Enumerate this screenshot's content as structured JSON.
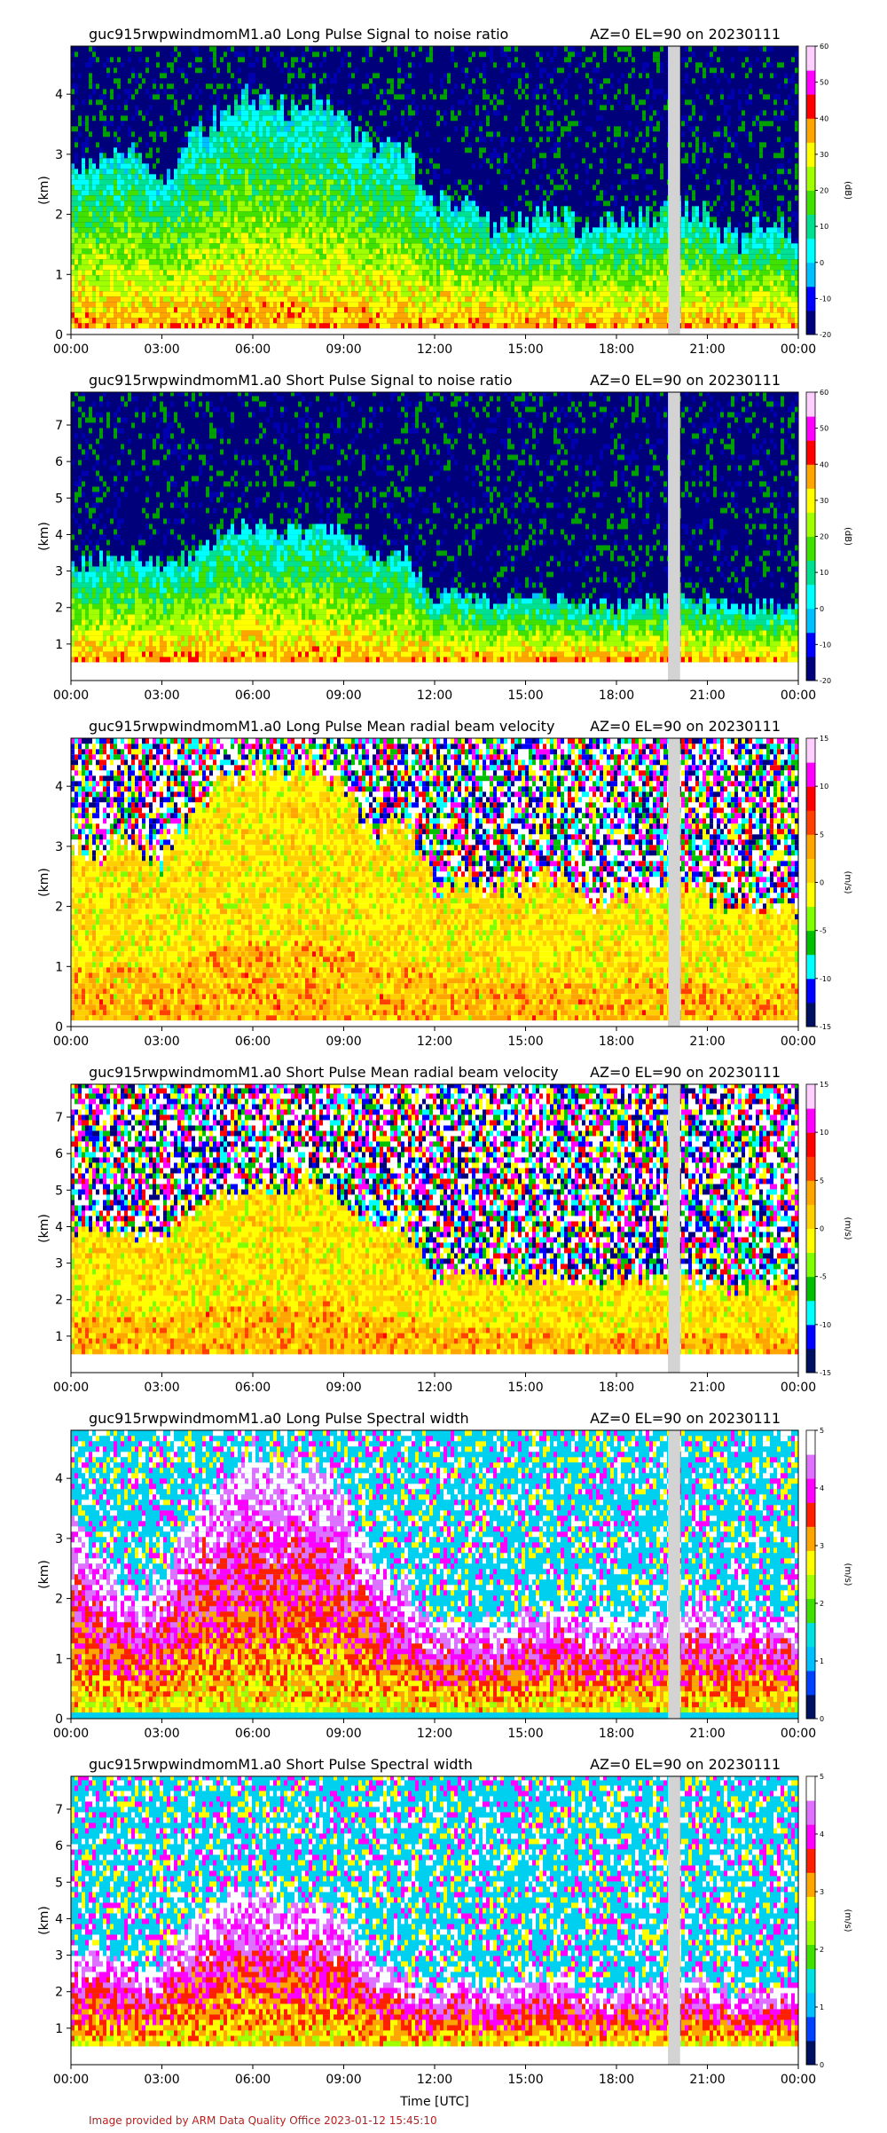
{
  "footer": {
    "credit": "Image provided by ARM Data Quality Office 2023-01-12 15:45:10",
    "credit_color": "#b22222"
  },
  "shared": {
    "ylabel": "(km)",
    "xlabel_bottom": "Time [UTC]",
    "x_tick_labels": [
      "00:00",
      "03:00",
      "06:00",
      "09:00",
      "12:00",
      "15:00",
      "18:00",
      "21:00",
      "00:00"
    ],
    "x_range_hours": [
      0,
      24
    ],
    "gap_hours": [
      19.7,
      20.1
    ],
    "gap_color": "#d3d3d3"
  },
  "chart_data": [
    {
      "type": "heatmap",
      "title": "guc915rwpwindmomM1.a0 Long Pulse Signal to noise ratio",
      "subtitle": "AZ=0 EL=90 on 20230111",
      "ylabel": "(km)",
      "ylim": [
        0,
        4.8
      ],
      "y_ticks": [
        0,
        1,
        2,
        3,
        4
      ],
      "colorbar_label": "(dB)",
      "colorbar_range": [
        -20,
        60
      ],
      "colorbar_ticks": [
        -20,
        -10,
        0,
        10,
        20,
        30,
        40,
        50,
        60
      ],
      "palette": "snr",
      "data_bottom_km": 0.1,
      "top_envelope_km": {
        "hours": [
          0,
          1,
          2,
          3,
          4,
          5,
          6,
          7,
          8,
          9,
          10,
          11,
          12,
          13,
          14,
          15,
          16,
          17,
          18,
          19,
          20,
          21,
          22,
          23,
          24
        ],
        "values": [
          2.8,
          2.8,
          3.0,
          2.5,
          3.3,
          3.7,
          4.0,
          3.8,
          3.9,
          3.7,
          3.0,
          3.1,
          2.2,
          2.1,
          1.8,
          1.9,
          2.0,
          1.7,
          1.9,
          2.0,
          2.1,
          2.0,
          1.6,
          1.9,
          1.7
        ]
      }
    },
    {
      "type": "heatmap",
      "title": "guc915rwpwindmomM1.a0 Short Pulse Signal to noise ratio",
      "subtitle": "AZ=0 EL=90 on 20230111",
      "ylabel": "(km)",
      "ylim": [
        0,
        7.9
      ],
      "y_ticks": [
        1,
        2,
        3,
        4,
        5,
        6,
        7
      ],
      "colorbar_label": "(dB)",
      "colorbar_range": [
        -20,
        60
      ],
      "colorbar_ticks": [
        -20,
        -10,
        0,
        10,
        20,
        30,
        40,
        50,
        60
      ],
      "palette": "snr",
      "data_bottom_km": 0.5,
      "top_envelope_km": {
        "hours": [
          0,
          1,
          2,
          3,
          4,
          5,
          6,
          7,
          8,
          9,
          10,
          11,
          12,
          13,
          14,
          15,
          16,
          17,
          18,
          19,
          20,
          21,
          22,
          23,
          24
        ],
        "values": [
          3.2,
          3.3,
          3.4,
          3.1,
          3.5,
          4.0,
          4.3,
          4.0,
          4.2,
          4.1,
          3.4,
          3.5,
          2.3,
          2.4,
          2.1,
          2.2,
          2.3,
          2.0,
          2.1,
          2.2,
          2.3,
          2.1,
          1.9,
          2.0,
          2.0
        ]
      }
    },
    {
      "type": "heatmap",
      "title": "guc915rwpwindmomM1.a0 Long Pulse Mean radial beam velocity",
      "subtitle": "AZ=0 EL=90 on 20230111",
      "ylabel": "(km)",
      "ylim": [
        0,
        4.8
      ],
      "y_ticks": [
        0,
        1,
        2,
        3,
        4
      ],
      "colorbar_label": "(m/s)",
      "colorbar_range": [
        -15,
        15
      ],
      "colorbar_ticks": [
        -15,
        -10,
        -5,
        0,
        5,
        10,
        15
      ],
      "palette": "velocity",
      "data_bottom_km": 0.1,
      "top_envelope_km": {
        "hours": [
          0,
          1,
          2,
          3,
          4,
          5,
          6,
          7,
          8,
          9,
          10,
          11,
          12,
          13,
          14,
          15,
          16,
          17,
          18,
          19,
          20,
          21,
          22,
          23,
          24
        ],
        "values": [
          3.0,
          2.9,
          3.1,
          2.7,
          3.6,
          4.1,
          4.3,
          4.2,
          4.4,
          3.9,
          3.3,
          3.4,
          2.3,
          2.5,
          2.3,
          2.4,
          2.5,
          2.1,
          2.2,
          2.3,
          2.4,
          2.2,
          1.9,
          2.1,
          2.0
        ]
      }
    },
    {
      "type": "heatmap",
      "title": "guc915rwpwindmomM1.a0 Short Pulse Mean radial beam velocity",
      "subtitle": "AZ=0 EL=90 on 20230111",
      "ylabel": "(km)",
      "ylim": [
        0,
        7.9
      ],
      "y_ticks": [
        1,
        2,
        3,
        4,
        5,
        6,
        7
      ],
      "colorbar_label": "(m/s)",
      "colorbar_range": [
        -15,
        15
      ],
      "colorbar_ticks": [
        -15,
        -10,
        -5,
        0,
        5,
        10,
        15
      ],
      "palette": "velocity",
      "data_bottom_km": 0.5,
      "top_envelope_km": {
        "hours": [
          0,
          1,
          2,
          3,
          4,
          5,
          6,
          7,
          8,
          9,
          10,
          11,
          12,
          13,
          14,
          15,
          16,
          17,
          18,
          19,
          20,
          21,
          22,
          23,
          24
        ],
        "values": [
          3.7,
          3.9,
          3.8,
          3.5,
          4.3,
          4.9,
          5.1,
          5.0,
          5.3,
          4.7,
          4.0,
          4.1,
          2.6,
          2.8,
          2.5,
          2.6,
          2.7,
          2.4,
          2.5,
          2.6,
          2.7,
          2.4,
          2.3,
          2.4,
          2.3
        ]
      }
    },
    {
      "type": "heatmap",
      "title": "guc915rwpwindmomM1.a0 Long Pulse Spectral width",
      "subtitle": "AZ=0 EL=90 on 20230111",
      "ylabel": "(km)",
      "ylim": [
        0,
        4.8
      ],
      "y_ticks": [
        0,
        1,
        2,
        3,
        4
      ],
      "colorbar_label": "(m/s)",
      "colorbar_range": [
        0,
        5
      ],
      "colorbar_ticks": [
        0,
        1,
        2,
        3,
        4,
        5
      ],
      "palette": "width",
      "data_bottom_km": 0.1,
      "top_envelope_km": {
        "hours": [
          0,
          1,
          2,
          3,
          4,
          5,
          6,
          7,
          8,
          9,
          10,
          11,
          12,
          13,
          14,
          15,
          16,
          17,
          18,
          19,
          20,
          21,
          22,
          23,
          24
        ],
        "values": [
          3.3,
          2.5,
          2.2,
          2.3,
          3.4,
          4.0,
          4.5,
          4.2,
          4.3,
          3.8,
          2.5,
          2.2,
          1.6,
          1.8,
          1.5,
          1.7,
          2.0,
          1.5,
          1.7,
          1.8,
          1.8,
          1.9,
          1.6,
          1.8,
          1.6
        ]
      }
    },
    {
      "type": "heatmap",
      "title": "guc915rwpwindmomM1.a0 Short Pulse Spectral width",
      "subtitle": "AZ=0 EL=90 on 20230111",
      "ylabel": "(km)",
      "ylim": [
        0,
        7.9
      ],
      "y_ticks": [
        1,
        2,
        3,
        4,
        5,
        6,
        7
      ],
      "colorbar_label": "(m/s)",
      "colorbar_range": [
        0,
        5
      ],
      "colorbar_ticks": [
        0,
        1,
        2,
        3,
        4,
        5
      ],
      "palette": "width",
      "data_bottom_km": 0.5,
      "top_envelope_km": {
        "hours": [
          0,
          1,
          2,
          3,
          4,
          5,
          6,
          7,
          8,
          9,
          10,
          11,
          12,
          13,
          14,
          15,
          16,
          17,
          18,
          19,
          20,
          21,
          22,
          23,
          24
        ],
        "values": [
          3.2,
          3.0,
          2.7,
          2.8,
          3.8,
          4.6,
          4.7,
          4.4,
          4.5,
          4.1,
          2.8,
          2.5,
          2.0,
          2.2,
          2.1,
          2.3,
          2.6,
          2.0,
          2.1,
          2.2,
          2.2,
          2.2,
          2.0,
          2.1,
          2.0
        ]
      }
    }
  ]
}
